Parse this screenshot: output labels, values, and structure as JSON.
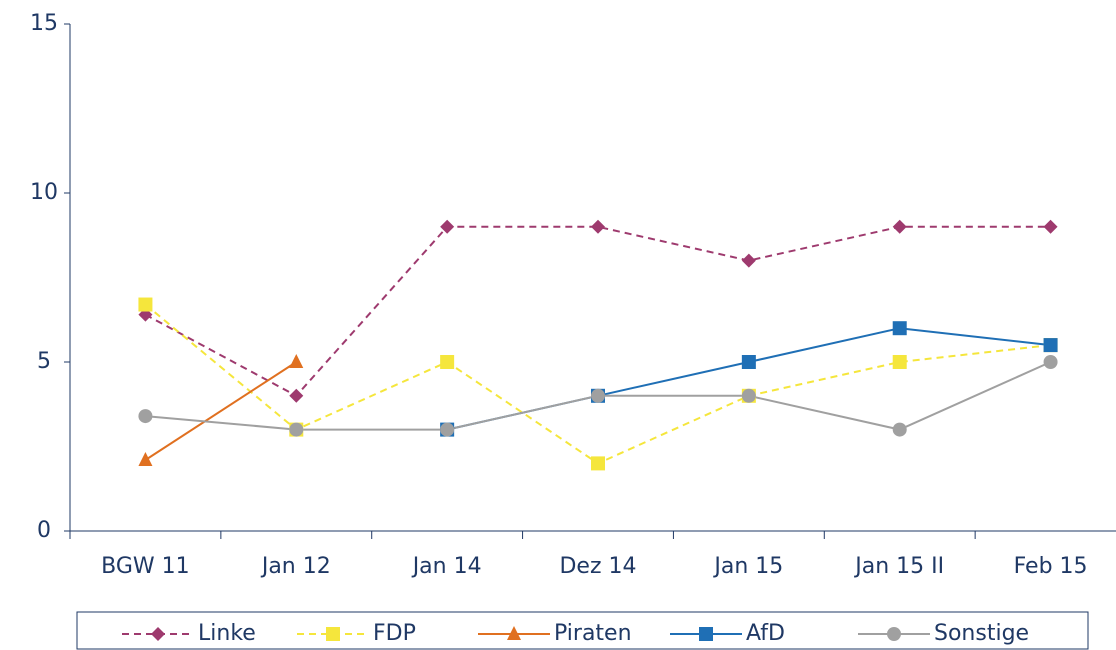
{
  "chart_data": {
    "type": "line",
    "categories": [
      "BGW 11",
      "Jan 12",
      "Jan 14",
      "Dez 14",
      "Jan 15",
      "Jan 15 II",
      "Feb 15"
    ],
    "series": [
      {
        "name": "Linke",
        "color": "#9e3a6e",
        "marker": "diamond",
        "dashed": true,
        "values": [
          6.4,
          4,
          9,
          9,
          8,
          9,
          9
        ]
      },
      {
        "name": "FDP",
        "color": "#f5e63c",
        "marker": "square",
        "dashed": true,
        "values": [
          6.7,
          3,
          5,
          2,
          4,
          5,
          5.5
        ]
      },
      {
        "name": "Piraten",
        "color": "#e07020",
        "marker": "triangle",
        "dashed": false,
        "values": [
          2.1,
          5,
          null,
          null,
          null,
          null,
          null
        ]
      },
      {
        "name": "AfD",
        "color": "#1f6fb5",
        "marker": "square",
        "dashed": false,
        "values": [
          null,
          null,
          3,
          4,
          5,
          6,
          5.5
        ]
      },
      {
        "name": "Sonstige",
        "color": "#a0a0a0",
        "marker": "circle",
        "dashed": false,
        "values": [
          3.4,
          3,
          3,
          4,
          4,
          3,
          5
        ]
      }
    ],
    "ylim": [
      0,
      15
    ],
    "yticks": [
      0,
      5,
      10,
      15
    ],
    "legend": "bottom"
  }
}
